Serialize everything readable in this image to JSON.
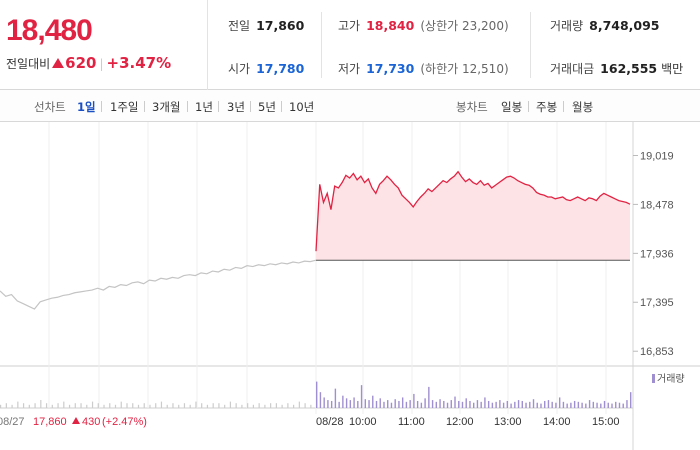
{
  "header": {
    "current_price": "18,480",
    "change_label": "전일대비",
    "change_abs": "620",
    "change_pct": "+3.47%",
    "stats": {
      "prev_close_label": "전일",
      "prev_close": "17,860",
      "high_label": "고가",
      "high": "18,840",
      "upper_limit": "(상한가 23,200)",
      "volume_label": "거래량",
      "volume": "8,748,095",
      "open_label": "시가",
      "open": "17,780",
      "low_label": "저가",
      "low": "17,730",
      "lower_limit": "(하한가 12,510)",
      "amount_label": "거래대금",
      "amount": "162,555",
      "amount_unit": "백만"
    }
  },
  "period_bar": {
    "line_label": "선차트",
    "line_periods": [
      "1일",
      "1주일",
      "3개월",
      "1년",
      "3년",
      "5년",
      "10년"
    ],
    "selected": "1일",
    "candle_label": "봉차트",
    "candle_periods": [
      "일봉",
      "주봉",
      "월봉"
    ]
  },
  "chart_data": {
    "type": "line",
    "y_ticks": [
      "19,019",
      "18,478",
      "17,936",
      "17,395",
      "16,853"
    ],
    "ylim": [
      16800,
      19080
    ],
    "x_ticks": [
      "08/28",
      "10:00",
      "11:00",
      "12:00",
      "13:00",
      "14:00",
      "15:00"
    ],
    "prev_day_label": "08/27",
    "prev_day_close": "17,860",
    "prev_day_change": "430",
    "prev_day_change_pct": "(+2.47%)",
    "baseline": 17860,
    "volume_legend": "거래량",
    "colors": {
      "up": "#e12343",
      "fill": "#fde3e6",
      "prev": "#c4c4c4",
      "volume": "#a08fd0",
      "volume_prev": "#cccccc"
    },
    "series": [
      {
        "values": [
          17520,
          17460,
          17480,
          17410,
          17380,
          17350,
          17320,
          17400,
          17420,
          17440,
          17450,
          17470,
          17480,
          17500,
          17510,
          17520,
          17530,
          17550,
          17530,
          17570,
          17560,
          17590,
          17580,
          17610,
          17620,
          17600,
          17640,
          17630,
          17660,
          17650,
          17670,
          17660,
          17690,
          17700,
          17690,
          17720,
          17710,
          17740,
          17730,
          17760,
          17750,
          17780,
          17770,
          17800,
          17790,
          17810,
          17800,
          17820,
          17810,
          17830,
          17820,
          17840,
          17830,
          17850,
          17845,
          17860
        ]
      },
      {
        "values": [
          17960,
          18700,
          18500,
          18600,
          18420,
          18680,
          18660,
          18720,
          18800,
          18770,
          18820,
          18750,
          18790,
          18720,
          18760,
          18660,
          18600,
          18700,
          18740,
          18790,
          18750,
          18700,
          18660,
          18580,
          18540,
          18500,
          18450,
          18510,
          18560,
          18600,
          18650,
          18620,
          18660,
          18700,
          18740,
          18720,
          18760,
          18790,
          18840,
          18780,
          18730,
          18760,
          18720,
          18700,
          18740,
          18690,
          18710,
          18660,
          18690,
          18720,
          18750,
          18780,
          18790,
          18770,
          18740,
          18720,
          18700,
          18690,
          18660,
          18610,
          18590,
          18580,
          18560,
          18560,
          18540,
          18550,
          18560,
          18530,
          18520,
          18540,
          18560,
          18540,
          18520,
          18550,
          18540,
          18520,
          18570,
          18600,
          18580,
          18560,
          18540,
          18520,
          18510,
          18500,
          18480
        ]
      }
    ],
    "volume": {
      "prev_day": [
        2,
        3,
        2,
        4,
        3,
        2,
        3,
        5,
        3,
        2,
        3,
        4,
        2,
        3,
        3,
        2,
        4,
        3,
        2,
        3,
        2,
        4,
        3,
        3,
        2,
        3,
        2,
        3,
        4,
        2,
        3,
        2,
        3,
        2,
        4,
        3,
        2,
        3,
        3,
        2,
        4,
        3,
        2,
        3,
        2,
        3,
        2,
        3,
        3,
        2,
        3,
        2,
        4,
        3,
        2,
        6
      ],
      "today": [
        30,
        18,
        12,
        9,
        8,
        22,
        7,
        14,
        11,
        9,
        12,
        8,
        26,
        10,
        9,
        14,
        8,
        11,
        7,
        9,
        6,
        10,
        8,
        12,
        7,
        9,
        16,
        8,
        6,
        11,
        24,
        9,
        7,
        10,
        8,
        6,
        9,
        13,
        8,
        7,
        11,
        8,
        6,
        9,
        7,
        12,
        8,
        6,
        7,
        9,
        6,
        8,
        5,
        7,
        9,
        8,
        6,
        7,
        10,
        6,
        5,
        8,
        9,
        7,
        6,
        12,
        7,
        5,
        6,
        8,
        7,
        6,
        5,
        9,
        7,
        6,
        5,
        8,
        6,
        5,
        7,
        6,
        5,
        9,
        18
      ]
    }
  }
}
